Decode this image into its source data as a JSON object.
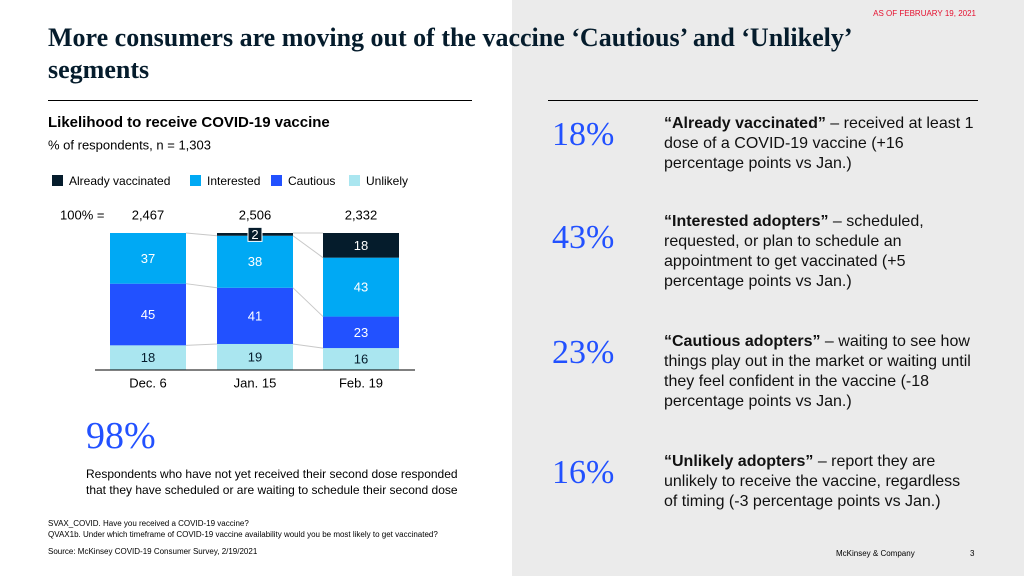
{
  "as_of": "AS OF FEBRUARY 19, 2021",
  "title": "More consumers are moving out of the vaccine ‘Cautious’ and ‘Unlikely’  segments",
  "chart_data": {
    "type": "stacked_bar",
    "title": "Likelihood to receive COVID-19 vaccine",
    "subtitle": "% of respondents, n = 1,303",
    "total_prefix": "100% =",
    "totals": [
      {
        "value": 2467,
        "label": "2,467"
      },
      {
        "value": 2506,
        "label": "2,506"
      },
      {
        "value": 2332,
        "label": "2,332"
      }
    ],
    "categories": [
      "Dec. 6",
      "Jan. 15",
      "Feb. 19"
    ],
    "ylim": [
      0,
      100
    ],
    "series": [
      {
        "name": "Already vaccinated",
        "color": "#051c2c",
        "label_color": "#ffffff",
        "values": [
          null,
          2,
          18
        ]
      },
      {
        "name": "Interested",
        "color": "#00a9f4",
        "label_color": "#ffffff",
        "values": [
          37,
          38,
          43
        ]
      },
      {
        "name": "Cautious",
        "color": "#2251ff",
        "label_color": "#ffffff",
        "values": [
          45,
          41,
          23
        ]
      },
      {
        "name": "Unlikely",
        "color": "#aae6f0",
        "label_color": "#051c2c",
        "values": [
          18,
          19,
          16
        ]
      }
    ]
  },
  "callout": {
    "value": "98%",
    "lines": [
      "Respondents who have not yet received their second dose responded",
      "that they have scheduled or are waiting to schedule their second dose"
    ]
  },
  "stats": [
    {
      "value": "18%",
      "label": "“Already vaccinated”",
      "text": " – received at least 1 dose of a COVID-19 vaccine (+16 percentage points vs Jan.)"
    },
    {
      "value": "43%",
      "label": "“Interested adopters”",
      "text": " – scheduled, requested, or plan to schedule an appointment to get vaccinated (+5 percentage points vs Jan.)"
    },
    {
      "value": "23%",
      "label": "“Cautious adopters”",
      "text": " – waiting to see how things play out in the market or waiting until they feel confident in the vaccine (-18 percentage points vs Jan.)"
    },
    {
      "value": "16%",
      "label": "“Unlikely adopters”",
      "text": " – report they are unlikely to receive the vaccine, regardless of timing (-3 percentage points vs Jan.)"
    }
  ],
  "footnotes": [
    "SVAX_COVID. Have you received a COVID-19 vaccine?",
    "QVAX1b. Under which timeframe of COVID-19 vaccine availability would you be most likely to get vaccinated?"
  ],
  "source": "Source: McKinsey COVID-19 Consumer Survey, 2/19/2021",
  "company": "McKinsey & Company",
  "page": "3"
}
